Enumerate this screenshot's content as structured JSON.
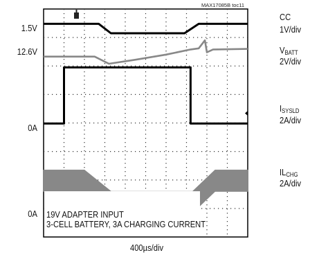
{
  "chart_data": {
    "type": "line",
    "title": "",
    "figure_id": "MAX17085B toc11",
    "time_scale": "400µs/div",
    "divisions": {
      "x": 10,
      "y": 8
    },
    "grid": "dotted",
    "annotations": [
      "19V ADAPTER INPUT",
      "3-CELL BATTERY, 3A CHARGING CURRENT"
    ],
    "x_units": "div",
    "series": [
      {
        "name": "CC",
        "scale": "1V/div",
        "offset_label": "1.5V",
        "color": "#000000",
        "points": [
          [
            0,
            7.48
          ],
          [
            2.7,
            7.48
          ],
          [
            3.3,
            7.15
          ],
          [
            6.9,
            7.15
          ],
          [
            7.6,
            7.48
          ],
          [
            10,
            7.48
          ]
        ]
      },
      {
        "name": "VBATT",
        "scale": "2V/div",
        "offset_label": "12.6V",
        "color": "#888888",
        "points": [
          [
            0,
            6.33
          ],
          [
            2.5,
            6.33
          ],
          [
            3.2,
            6.08
          ],
          [
            4.5,
            6.22
          ],
          [
            6.0,
            6.4
          ],
          [
            7.2,
            6.58
          ],
          [
            7.6,
            6.62
          ],
          [
            7.9,
            6.9
          ],
          [
            8.0,
            6.48
          ],
          [
            8.3,
            6.58
          ],
          [
            10,
            6.6
          ]
        ]
      },
      {
        "name": "ISYSLD",
        "scale": "2A/div",
        "offset_label": "0A",
        "color": "#000000",
        "points": [
          [
            0,
            3.98
          ],
          [
            1.0,
            3.98
          ],
          [
            1.0,
            5.95
          ],
          [
            7.2,
            5.95
          ],
          [
            7.2,
            3.98
          ],
          [
            10,
            3.98
          ]
        ]
      },
      {
        "name": "ILCHG",
        "scale": "2A/div",
        "offset_label": "0A",
        "color": "#888888",
        "band_top": [
          [
            0,
            2.35
          ],
          [
            2.0,
            2.35
          ],
          [
            3.3,
            1.6
          ],
          [
            7.3,
            1.6
          ],
          [
            8.4,
            2.35
          ],
          [
            10,
            2.35
          ]
        ],
        "band_bottom": [
          [
            0,
            1.6
          ],
          [
            2.0,
            1.6
          ],
          [
            3.3,
            0.85
          ],
          [
            7.3,
            0.85
          ],
          [
            8.4,
            1.6
          ],
          [
            10,
            1.6
          ]
        ]
      }
    ]
  },
  "labels": {
    "left": {
      "cc_offset": "1.5V",
      "vbatt_offset": "12.6V",
      "isysld_ground": "0A",
      "ilchg_ground": "0A"
    },
    "right": {
      "cc_name": "CC",
      "cc_scale": "1V/div",
      "vbatt_main": "V",
      "vbatt_sub": "BATT",
      "vbatt_scale": "2V/div",
      "isysld_main": "I",
      "isysld_sub": "SYSLD",
      "isysld_scale": "2A/div",
      "ilchg_main": "IL",
      "ilchg_sub": "CHG",
      "ilchg_scale": "2A/div"
    },
    "annotation_line1": "19V ADAPTER INPUT",
    "annotation_line2": "3-CELL BATTERY, 3A CHARGING CURRENT",
    "figure_id": "MAX17085B toc11",
    "time_scale": "400µs/div"
  }
}
